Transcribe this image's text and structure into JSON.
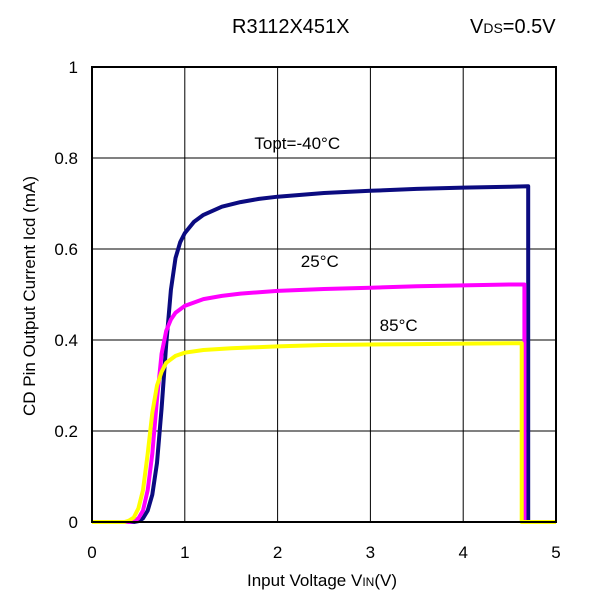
{
  "header": {
    "part_number": "R3112X451X",
    "condition_main": "V",
    "condition_sub": "DS",
    "condition_value": "=0.5V"
  },
  "chart_data": {
    "type": "line",
    "title": "",
    "xlabel_main": "Input Voltage V",
    "xlabel_sub": "IN",
    "xlabel_tail": "(V)",
    "ylabel": "CD Pin Output Current Icd (mA)",
    "xlim": [
      0,
      5
    ],
    "ylim": [
      0,
      1
    ],
    "xticks": [
      0,
      1,
      2,
      3,
      4,
      5
    ],
    "yticks": [
      0,
      0.2,
      0.4,
      0.6,
      0.8,
      1
    ],
    "xtick_labels": [
      "0",
      "1",
      "2",
      "3",
      "4",
      "5"
    ],
    "ytick_labels": [
      "0",
      "0.2",
      "0.4",
      "0.6",
      "0.8",
      "1"
    ],
    "grid": true,
    "legend": "none",
    "series": [
      {
        "label": "Topt=-40°C",
        "color": "#0b0b80",
        "points": [
          [
            0,
            0
          ],
          [
            0.4,
            0
          ],
          [
            0.45,
            0
          ],
          [
            0.5,
            0.002
          ],
          [
            0.55,
            0.008
          ],
          [
            0.6,
            0.025
          ],
          [
            0.65,
            0.06
          ],
          [
            0.7,
            0.13
          ],
          [
            0.75,
            0.25
          ],
          [
            0.8,
            0.39
          ],
          [
            0.85,
            0.51
          ],
          [
            0.9,
            0.58
          ],
          [
            0.95,
            0.615
          ],
          [
            1.0,
            0.635
          ],
          [
            1.1,
            0.66
          ],
          [
            1.2,
            0.675
          ],
          [
            1.4,
            0.693
          ],
          [
            1.6,
            0.703
          ],
          [
            1.8,
            0.71
          ],
          [
            2.0,
            0.715
          ],
          [
            2.5,
            0.723
          ],
          [
            3.0,
            0.728
          ],
          [
            3.5,
            0.732
          ],
          [
            4.0,
            0.735
          ],
          [
            4.5,
            0.737
          ],
          [
            4.7,
            0.738
          ],
          [
            4.7,
            0
          ],
          [
            5.0,
            0
          ]
        ]
      },
      {
        "label": "25°C",
        "color": "#ff00ff",
        "points": [
          [
            0,
            0
          ],
          [
            0.4,
            0
          ],
          [
            0.45,
            0.002
          ],
          [
            0.5,
            0.008
          ],
          [
            0.55,
            0.025
          ],
          [
            0.6,
            0.07
          ],
          [
            0.65,
            0.15
          ],
          [
            0.7,
            0.27
          ],
          [
            0.75,
            0.37
          ],
          [
            0.8,
            0.42
          ],
          [
            0.85,
            0.445
          ],
          [
            0.9,
            0.46
          ],
          [
            1.0,
            0.475
          ],
          [
            1.2,
            0.49
          ],
          [
            1.4,
            0.497
          ],
          [
            1.6,
            0.502
          ],
          [
            2.0,
            0.508
          ],
          [
            2.5,
            0.512
          ],
          [
            3.0,
            0.515
          ],
          [
            3.5,
            0.518
          ],
          [
            4.0,
            0.52
          ],
          [
            4.5,
            0.522
          ],
          [
            4.66,
            0.522
          ],
          [
            4.66,
            0
          ],
          [
            5.0,
            0
          ]
        ]
      },
      {
        "label": "85°C",
        "color": "#ffff00",
        "points": [
          [
            0,
            0
          ],
          [
            0.35,
            0
          ],
          [
            0.4,
            0.003
          ],
          [
            0.45,
            0.01
          ],
          [
            0.5,
            0.03
          ],
          [
            0.55,
            0.07
          ],
          [
            0.6,
            0.15
          ],
          [
            0.65,
            0.24
          ],
          [
            0.7,
            0.3
          ],
          [
            0.75,
            0.33
          ],
          [
            0.8,
            0.35
          ],
          [
            0.9,
            0.365
          ],
          [
            1.0,
            0.372
          ],
          [
            1.2,
            0.378
          ],
          [
            1.5,
            0.382
          ],
          [
            2.0,
            0.386
          ],
          [
            2.5,
            0.389
          ],
          [
            3.0,
            0.39
          ],
          [
            3.5,
            0.391
          ],
          [
            4.0,
            0.392
          ],
          [
            4.5,
            0.393
          ],
          [
            4.63,
            0.393
          ],
          [
            4.63,
            0
          ],
          [
            5.0,
            0
          ]
        ]
      }
    ],
    "annotations": [
      {
        "text": "Topt=-40°C",
        "x": 1.75,
        "y": 0.82
      },
      {
        "text": "25°C",
        "x": 2.25,
        "y": 0.56
      },
      {
        "text": "85°C",
        "x": 3.1,
        "y": 0.42
      }
    ]
  }
}
